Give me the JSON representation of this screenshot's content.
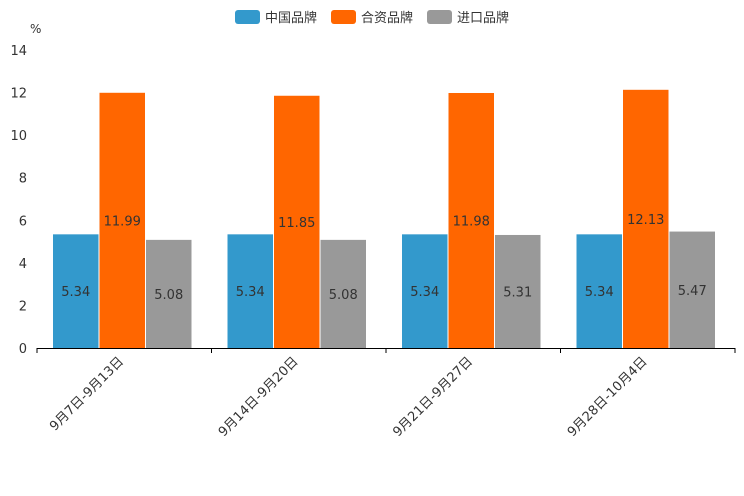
{
  "chart_data": {
    "type": "bar",
    "unit": "%",
    "categories": [
      "9月7日-9月13日",
      "9月14日-9月20日",
      "9月21日-9月27日",
      "9月28日-10月4日"
    ],
    "series": [
      {
        "name": "中国品牌",
        "color": "#3399cc",
        "values": [
          5.34,
          5.34,
          5.34,
          5.34
        ]
      },
      {
        "name": "合资品牌",
        "color": "#ff6600",
        "values": [
          11.99,
          11.85,
          11.98,
          12.13
        ]
      },
      {
        "name": "进口品牌",
        "color": "#999999",
        "values": [
          5.08,
          5.08,
          5.31,
          5.47
        ]
      }
    ],
    "ylim": [
      0,
      14
    ],
    "yticks": [
      0,
      2,
      4,
      6,
      8,
      10,
      12,
      14
    ],
    "legend_position": "top-center"
  }
}
